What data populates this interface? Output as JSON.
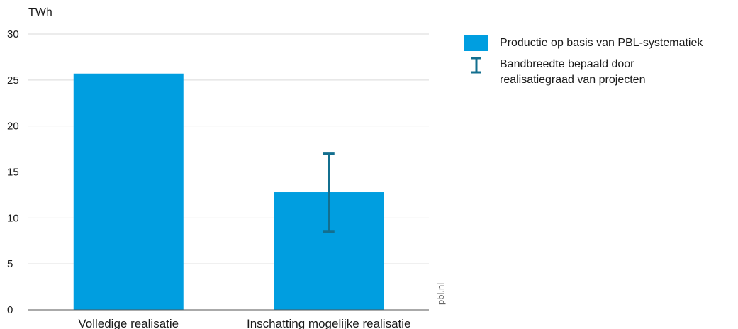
{
  "chart_data": {
    "type": "bar",
    "ylabel": "TWh",
    "ylim": [
      0,
      30
    ],
    "yticks": [
      0,
      5,
      10,
      15,
      20,
      25,
      30
    ],
    "categories": [
      "Volledige realisatie",
      "Inschatting mogelijke realisatie"
    ],
    "series": [
      {
        "name": "Productie op basis van PBL-systematiek",
        "values": [
          25.7,
          12.8
        ],
        "color": "#009ee0"
      }
    ],
    "error_bars": [
      null,
      {
        "low": 8.5,
        "high": 17.0
      }
    ],
    "error_bar_name": "Bandbreedte  bepaald door realisatiegraad van projecten",
    "error_bar_color": "#136f8f",
    "grid": true,
    "legend_position": "right",
    "source": "pbl.nl"
  },
  "legend": {
    "bar_label": "Productie op basis van PBL-systematiek",
    "errbar_line1": "Bandbreedte  bepaald door",
    "errbar_line2": "realisatiegraad van projecten"
  }
}
